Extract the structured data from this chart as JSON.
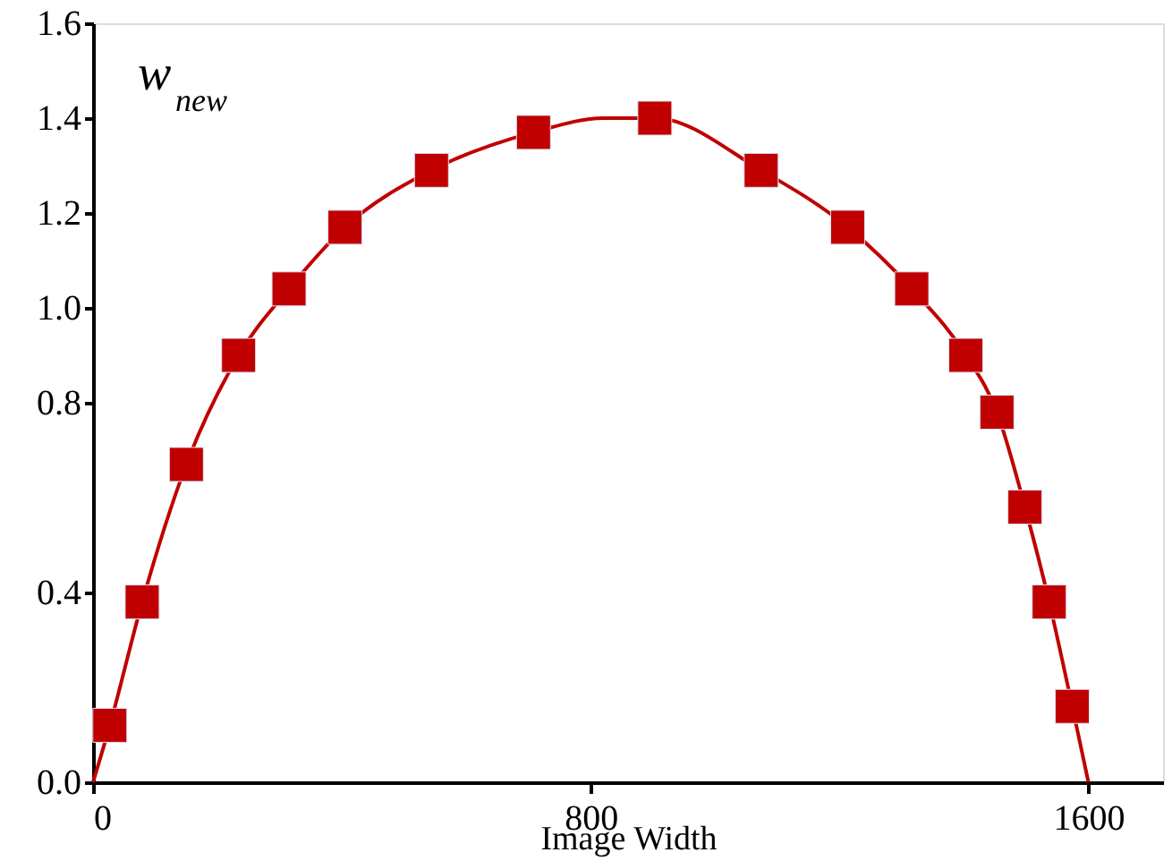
{
  "chart_data": {
    "type": "scatter",
    "ylabel": "w$_{new}$",
    "xlabel": "Image Width",
    "xlim": [
      0,
      1720
    ],
    "xticks": [
      0,
      800,
      1600
    ],
    "ylim": [
      0,
      1.6
    ],
    "yticks": [
      {
        "value": 0,
        "label": "0.0"
      },
      0.4,
      0.8,
      {
        "value": 1.0,
        "label": "1.0"
      },
      1.2,
      1.4,
      1.6
    ],
    "grid": false,
    "series": [
      {
        "type": "line",
        "color": "#c00000",
        "marker": "none",
        "line_style": "solid",
        "x": [
          0,
          27,
          79,
          150,
          234,
          315,
          405,
          544,
          708,
          820,
          903,
          1074,
          1213,
          1316,
          1403,
          1453,
          1498,
          1537,
          1574,
          1600
        ],
        "values": [
          0,
          0.12,
          0.38,
          0.67,
          0.9,
          1.04,
          1.17,
          1.29,
          1.37,
          1.4,
          1.4,
          1.29,
          1.17,
          1.04,
          0.9,
          0.78,
          0.58,
          0.38,
          0.16,
          0
        ]
      },
      {
        "type": "scatter",
        "color": "#c00000",
        "marker": "square",
        "x": [
          27,
          79,
          150,
          234,
          315,
          405,
          544,
          708,
          903,
          1074,
          1213,
          1316,
          1403,
          1453,
          1498,
          1537,
          1574
        ],
        "values": [
          0.12,
          0.38,
          0.67,
          0.9,
          1.04,
          1.17,
          1.29,
          1.37,
          1.4,
          1.29,
          1.17,
          1.04,
          0.9,
          0.78,
          0.58,
          0.38,
          0.16
        ]
      }
    ]
  }
}
